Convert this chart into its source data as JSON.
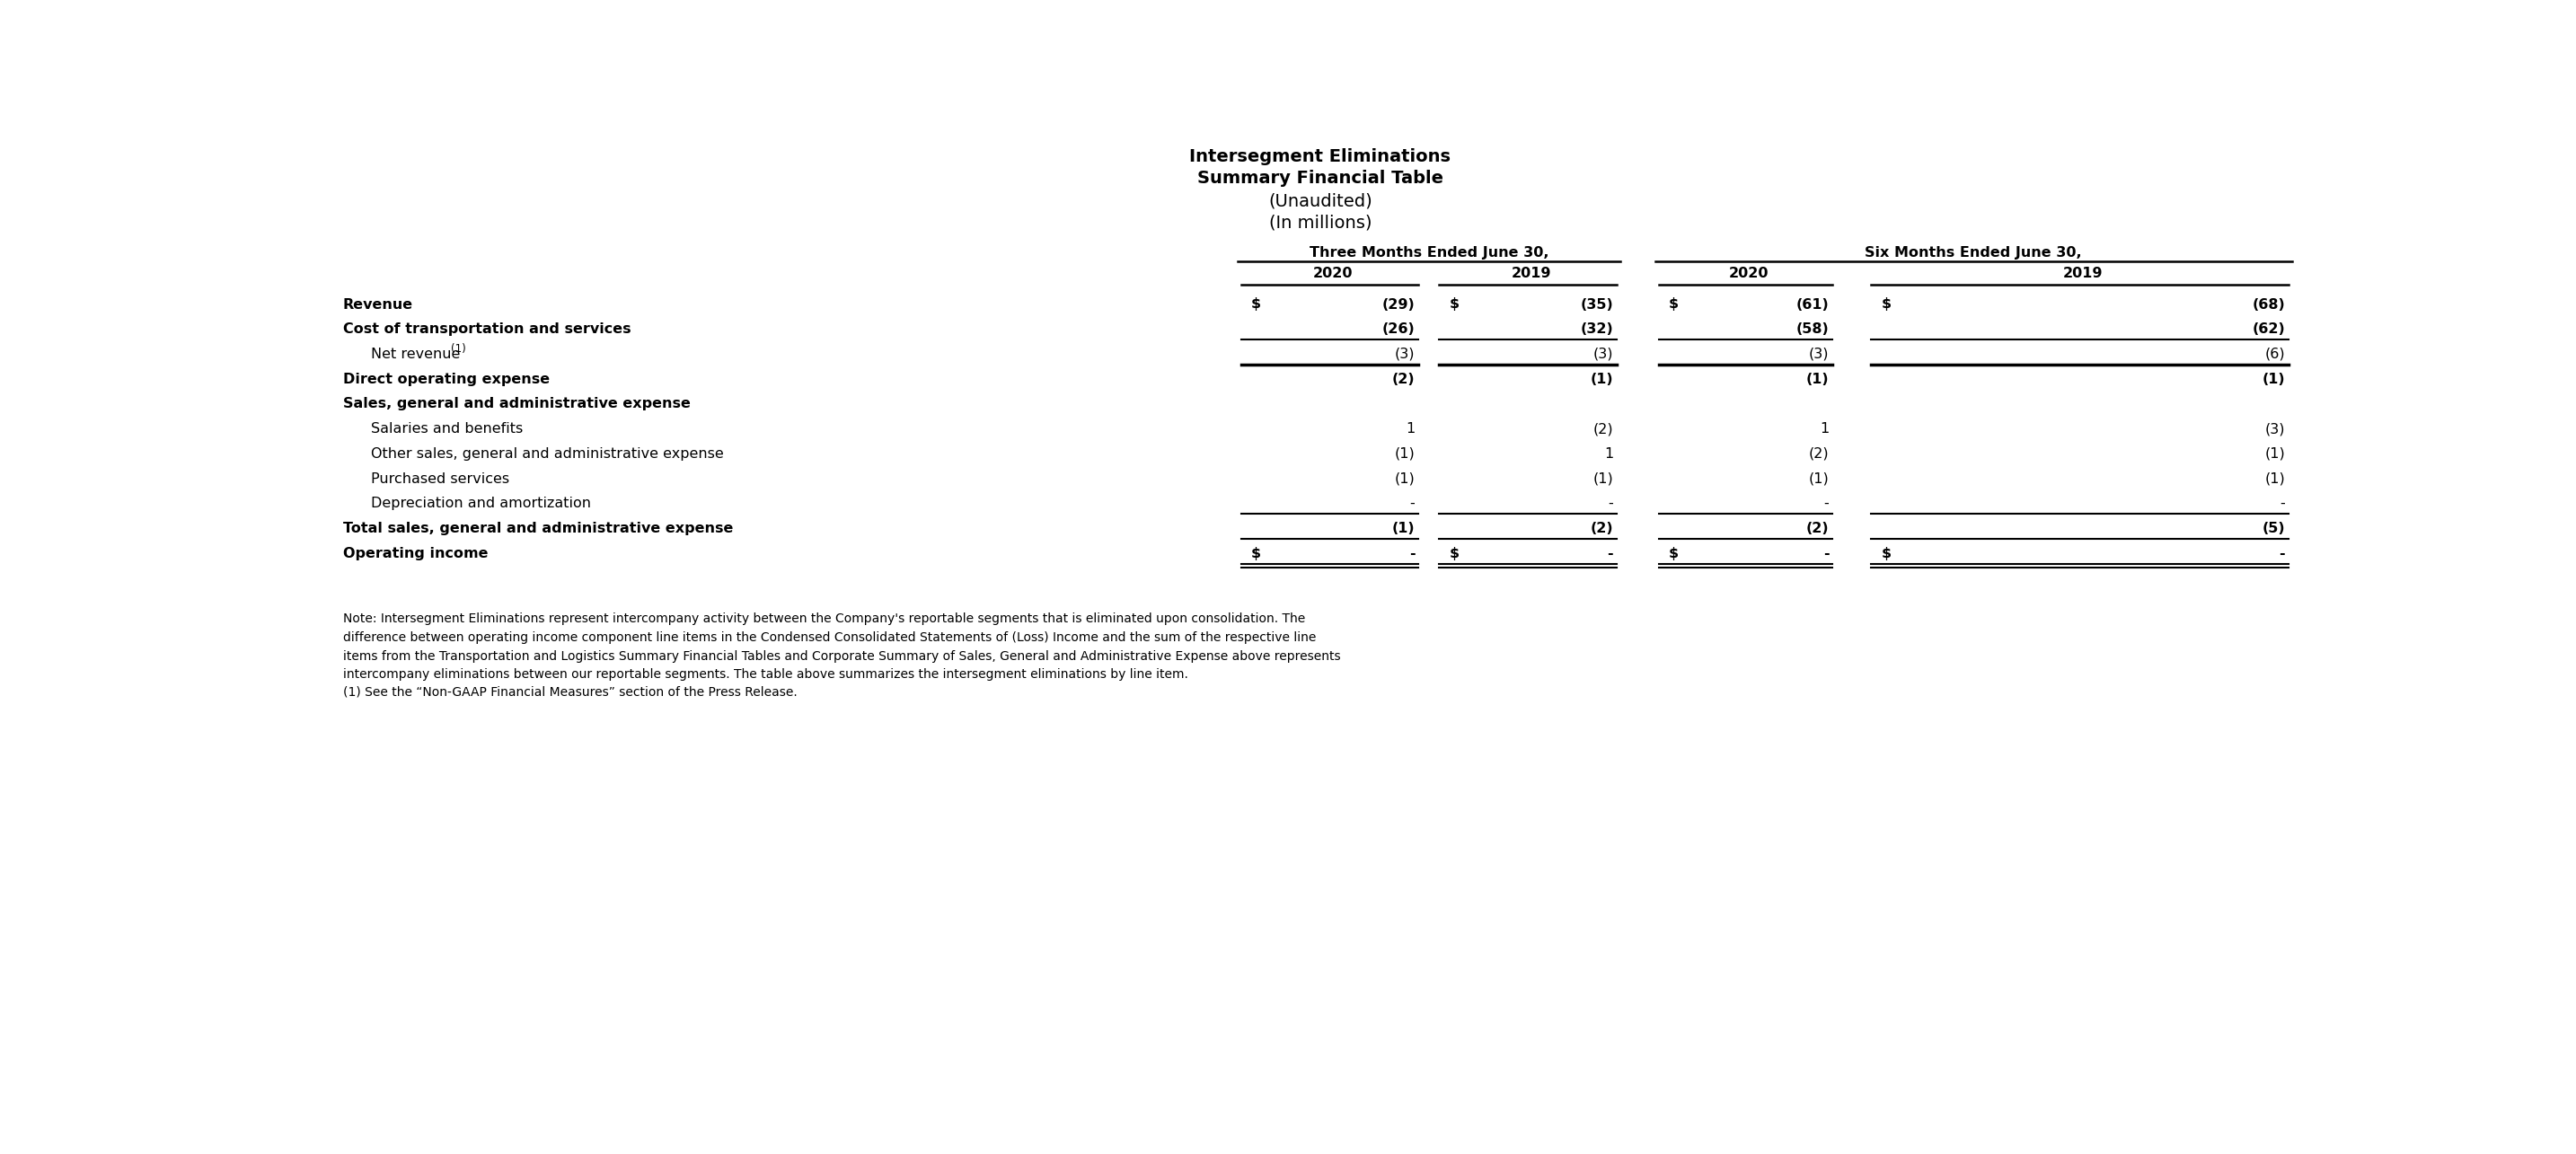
{
  "title_lines": [
    "Intersegment Eliminations",
    "Summary Financial Table",
    "(Unaudited)",
    "(In millions)"
  ],
  "title_bold": [
    true,
    true,
    false,
    false
  ],
  "col_headers_group1": "Three Months Ended June 30,",
  "col_headers_group2": "Six Months Ended June 30,",
  "col_years": [
    "2020",
    "2019",
    "2020",
    "2019"
  ],
  "rows": [
    {
      "label": "Revenue",
      "bold": true,
      "indent": 0,
      "dollar_sign": true,
      "values": [
        "(29)",
        "(35)",
        "(61)",
        "(68)"
      ],
      "line_below": false,
      "thick_line_below": false,
      "double_line_below": false,
      "has_superscript": false
    },
    {
      "label": "Cost of transportation and services",
      "bold": true,
      "indent": 0,
      "dollar_sign": false,
      "values": [
        "(26)",
        "(32)",
        "(58)",
        "(62)"
      ],
      "line_below": true,
      "thick_line_below": false,
      "double_line_below": false,
      "has_superscript": false
    },
    {
      "label": "Net revenue ",
      "label_super": "(1)",
      "bold": false,
      "indent": 1,
      "dollar_sign": false,
      "values": [
        "(3)",
        "(3)",
        "(3)",
        "(6)"
      ],
      "line_below": true,
      "thick_line_below": true,
      "double_line_below": false,
      "has_superscript": true
    },
    {
      "label": "Direct operating expense",
      "bold": true,
      "indent": 0,
      "dollar_sign": false,
      "values": [
        "(2)",
        "(1)",
        "(1)",
        "(1)"
      ],
      "line_below": false,
      "thick_line_below": false,
      "double_line_below": false,
      "has_superscript": false
    },
    {
      "label": "Sales, general and administrative expense",
      "bold": true,
      "indent": 0,
      "dollar_sign": false,
      "values": [
        "",
        "",
        "",
        ""
      ],
      "line_below": false,
      "thick_line_below": false,
      "double_line_below": false,
      "has_superscript": false
    },
    {
      "label": "Salaries and benefits",
      "bold": false,
      "indent": 1,
      "dollar_sign": false,
      "values": [
        "1",
        "(2)",
        "1",
        "(3)"
      ],
      "line_below": false,
      "thick_line_below": false,
      "double_line_below": false,
      "has_superscript": false
    },
    {
      "label": "Other sales, general and administrative expense",
      "bold": false,
      "indent": 1,
      "dollar_sign": false,
      "values": [
        "(1)",
        "1",
        "(2)",
        "(1)"
      ],
      "line_below": false,
      "thick_line_below": false,
      "double_line_below": false,
      "has_superscript": false
    },
    {
      "label": "Purchased services",
      "bold": false,
      "indent": 1,
      "dollar_sign": false,
      "values": [
        "(1)",
        "(1)",
        "(1)",
        "(1)"
      ],
      "line_below": false,
      "thick_line_below": false,
      "double_line_below": false,
      "has_superscript": false
    },
    {
      "label": "Depreciation and amortization",
      "bold": false,
      "indent": 1,
      "dollar_sign": false,
      "values": [
        "-",
        "-",
        "-",
        "-"
      ],
      "line_below": true,
      "thick_line_below": false,
      "double_line_below": false,
      "has_superscript": false
    },
    {
      "label": "Total sales, general and administrative expense",
      "bold": true,
      "indent": 0,
      "dollar_sign": false,
      "values": [
        "(1)",
        "(2)",
        "(2)",
        "(5)"
      ],
      "line_below": true,
      "thick_line_below": false,
      "double_line_below": false,
      "has_superscript": false
    },
    {
      "label": "Operating income",
      "bold": true,
      "indent": 0,
      "dollar_sign": true,
      "values": [
        "-",
        "-",
        "-",
        "-"
      ],
      "line_below": false,
      "thick_line_below": false,
      "double_line_below": true,
      "has_superscript": false
    }
  ],
  "note_text": "Note: Intersegment Eliminations represent intercompany activity between the Company's reportable segments that is eliminated upon consolidation. The\ndifference between operating income component line items in the Condensed Consolidated Statements of (Loss) Income and the sum of the respective line\nitems from the Transportation and Logistics Summary Financial Tables and Corporate Summary of Sales, General and Administrative Expense above represents\nintercompany eliminations between our reportable segments. The table above summarizes the intersegment eliminations by line item.",
  "footnote_text": "(1) See the “Non-GAAP Financial Measures” section of the Press Release.",
  "bg_color": "#ffffff",
  "text_color": "#000000",
  "title_fontsize": 14,
  "header_fontsize": 11.5,
  "body_fontsize": 11.5,
  "note_fontsize": 10
}
